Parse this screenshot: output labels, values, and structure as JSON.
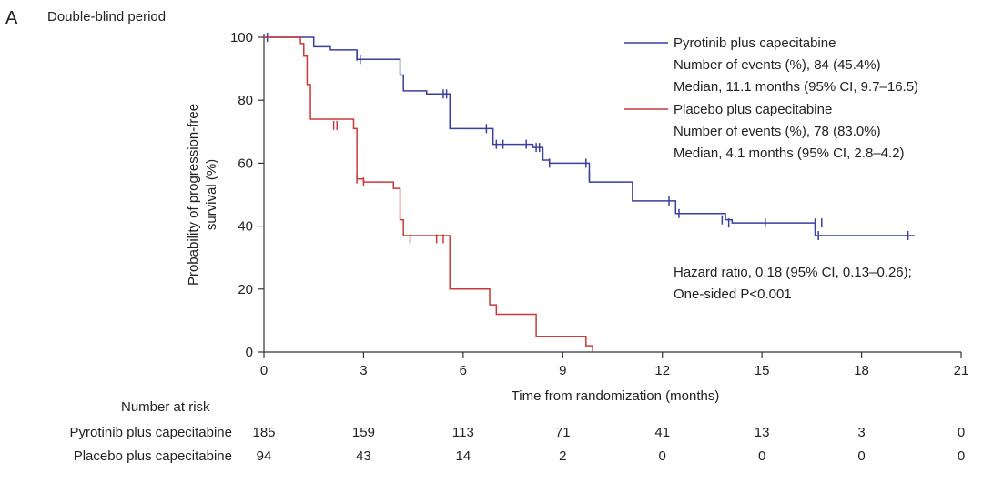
{
  "panel_label": "A",
  "period_label": "Double-blind period",
  "chart_data": {
    "type": "line",
    "title": "",
    "xlabel": "Time from randomization (months)",
    "ylabel_line1": "Probability of progression-free",
    "ylabel_line2": "survival (%)",
    "xlim": [
      0,
      21
    ],
    "ylim": [
      0,
      100
    ],
    "xticks": [
      0,
      3,
      6,
      9,
      12,
      15,
      18,
      21
    ],
    "yticks": [
      0,
      20,
      40,
      60,
      80,
      100
    ],
    "grid": false,
    "legend_position": "top-right",
    "series": [
      {
        "name": "Pyrotinib plus capecitabine",
        "color": "#3a3fa0",
        "events_text": "Number of events (%), 84 (45.4%)",
        "median_text": "Median, 11.1 months (95% CI, 9.7–16.5)",
        "steps": [
          [
            0,
            100
          ],
          [
            1.5,
            97
          ],
          [
            2.0,
            96
          ],
          [
            2.8,
            93
          ],
          [
            4.1,
            88
          ],
          [
            4.2,
            83
          ],
          [
            4.9,
            82
          ],
          [
            5.6,
            71
          ],
          [
            6.9,
            66
          ],
          [
            8.1,
            65
          ],
          [
            8.4,
            61
          ],
          [
            8.6,
            60
          ],
          [
            9.8,
            54
          ],
          [
            11.1,
            48
          ],
          [
            12.4,
            44
          ],
          [
            13.9,
            42
          ],
          [
            14.1,
            41
          ],
          [
            16.6,
            37
          ],
          [
            19.6,
            37
          ]
        ],
        "censors": [
          [
            0.1,
            100
          ],
          [
            2.8,
            94
          ],
          [
            2.9,
            93
          ],
          [
            5.4,
            82
          ],
          [
            5.5,
            82
          ],
          [
            6.7,
            71
          ],
          [
            7.0,
            66
          ],
          [
            7.2,
            66
          ],
          [
            7.9,
            66
          ],
          [
            8.2,
            65
          ],
          [
            8.3,
            65
          ],
          [
            8.4,
            63
          ],
          [
            8.6,
            60
          ],
          [
            9.7,
            60
          ],
          [
            9.8,
            56
          ],
          [
            12.2,
            48
          ],
          [
            12.5,
            44
          ],
          [
            13.8,
            42
          ],
          [
            14.0,
            41
          ],
          [
            15.1,
            41
          ],
          [
            16.6,
            41
          ],
          [
            16.8,
            41
          ],
          [
            16.7,
            37
          ],
          [
            19.4,
            37
          ]
        ]
      },
      {
        "name": "Placebo plus capecitabine",
        "color": "#c93a3a",
        "events_text": "Number of events (%), 78 (83.0%)",
        "median_text": "Median, 4.1 months (95% CI, 2.8–4.2)",
        "steps": [
          [
            0,
            100
          ],
          [
            1.1,
            98
          ],
          [
            1.2,
            94
          ],
          [
            1.3,
            85
          ],
          [
            1.4,
            74
          ],
          [
            2.7,
            71
          ],
          [
            2.8,
            55
          ],
          [
            3.0,
            54
          ],
          [
            3.9,
            52
          ],
          [
            4.1,
            42
          ],
          [
            4.2,
            37
          ],
          [
            5.6,
            20
          ],
          [
            6.8,
            15
          ],
          [
            7.0,
            12
          ],
          [
            8.2,
            5
          ],
          [
            9.7,
            2
          ],
          [
            9.9,
            0
          ]
        ],
        "censors": [
          [
            2.1,
            72
          ],
          [
            2.2,
            72
          ],
          [
            2.8,
            55
          ],
          [
            3.0,
            54
          ],
          [
            4.4,
            36
          ],
          [
            5.2,
            36
          ],
          [
            5.4,
            36
          ]
        ]
      }
    ],
    "annotation_line1": "Hazard ratio, 0.18 (95% CI, 0.13–0.26);",
    "annotation_line2": "One-sided P<0.001"
  },
  "risk_table": {
    "title": "Number at risk",
    "times": [
      0,
      3,
      6,
      9,
      12,
      15,
      18,
      21
    ],
    "rows": [
      {
        "label": "Pyrotinib plus capecitabine",
        "values": [
          "185",
          "159",
          "113",
          "71",
          "41",
          "13",
          "3",
          "0"
        ]
      },
      {
        "label": "Placebo plus capecitabine",
        "values": [
          "94",
          "43",
          "14",
          "2",
          "0",
          "0",
          "0",
          "0"
        ]
      }
    ]
  }
}
